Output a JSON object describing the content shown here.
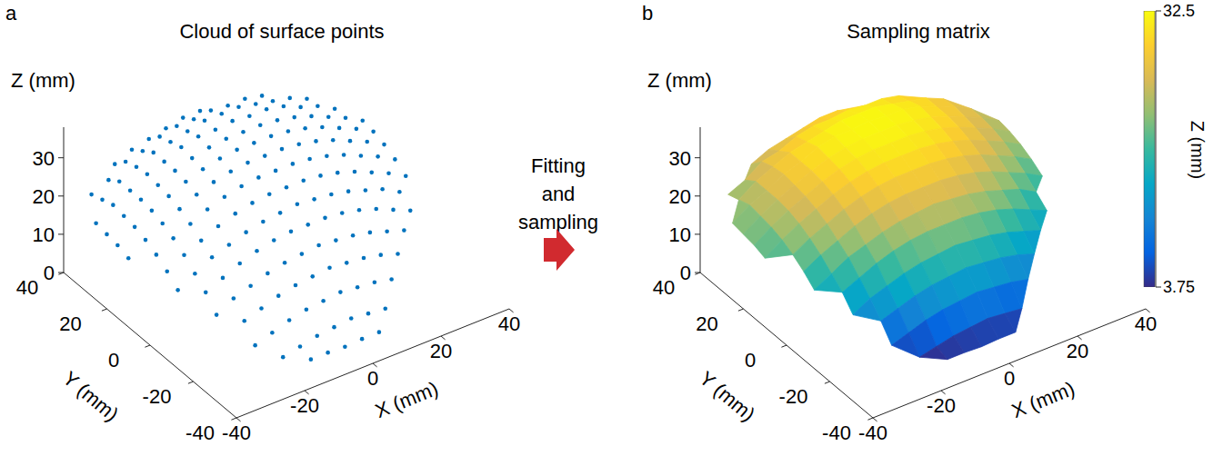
{
  "annotation": "Fitting and sampling",
  "chart_data": [
    {
      "label": "a",
      "type": "scatter3d",
      "title": "Cloud of surface points",
      "xlabel": "X (mm)",
      "ylabel": "Y (mm)",
      "zlabel": "Z (mm)",
      "xlim": [
        -40,
        40
      ],
      "ylim": [
        -40,
        40
      ],
      "zlim": [
        0,
        38
      ],
      "xticks": [
        -40,
        -20,
        0,
        20,
        40
      ],
      "yticks": [
        -40,
        -20,
        0,
        20,
        40
      ],
      "zticks": [
        0,
        10,
        20,
        30
      ],
      "color": "#0072bd",
      "x": [
        -40,
        -35,
        -30,
        -25,
        -20,
        -15,
        -10,
        -5,
        0,
        5,
        10,
        15,
        20,
        25,
        30,
        35,
        40
      ],
      "y": [
        -35,
        -30,
        -25,
        -20,
        -15,
        -10,
        -5,
        0,
        5,
        10,
        15,
        20,
        25,
        30,
        35,
        40
      ],
      "z": [
        [
          null,
          null,
          null,
          null,
          null,
          4,
          4,
          3.75,
          4,
          4,
          null,
          null,
          null,
          null,
          null,
          null,
          null
        ],
        [
          null,
          null,
          null,
          null,
          4,
          5,
          6,
          6.5,
          7,
          6.5,
          6,
          null,
          null,
          null,
          null,
          null,
          null
        ],
        [
          null,
          null,
          null,
          6.5,
          8,
          9.5,
          10.5,
          11,
          11.5,
          11,
          10.5,
          9.5,
          null,
          null,
          null,
          null,
          null
        ],
        [
          null,
          null,
          null,
          10.5,
          12,
          13.5,
          14.5,
          15,
          15.5,
          15,
          14.5,
          13.5,
          12,
          null,
          null,
          null,
          null
        ],
        [
          null,
          null,
          11.5,
          14,
          15.5,
          17,
          18,
          18.5,
          19,
          18.5,
          18,
          17,
          15.5,
          14,
          null,
          null,
          null
        ],
        [
          null,
          null,
          15,
          17,
          19,
          20.5,
          21.5,
          22,
          22,
          22,
          21.5,
          20.5,
          19,
          17,
          15,
          null,
          null
        ],
        [
          null,
          15,
          17.5,
          20,
          21.5,
          23,
          24,
          24.5,
          25,
          24.5,
          24,
          23,
          21.5,
          20,
          17.5,
          null,
          null
        ],
        [
          null,
          17.5,
          20,
          22,
          24,
          25.5,
          26.5,
          27,
          27,
          27,
          26.5,
          25.5,
          24,
          22,
          20,
          17.5,
          null
        ],
        [
          null,
          19.5,
          22,
          24,
          26,
          27.5,
          28.5,
          29,
          29,
          29,
          28.5,
          27.5,
          26,
          24,
          22,
          19.5,
          null
        ],
        [
          18,
          21,
          23.5,
          25.5,
          27.5,
          29,
          30,
          30.5,
          30.5,
          30.5,
          30,
          29,
          27.5,
          25.5,
          23.5,
          21,
          null
        ],
        [
          19,
          22,
          24.5,
          26.5,
          28.5,
          30,
          31,
          31.5,
          31.5,
          31.5,
          31,
          30,
          28.5,
          26.5,
          24.5,
          22,
          null
        ],
        [
          19.5,
          22.5,
          25,
          27,
          29,
          30.5,
          31.5,
          32,
          32,
          32,
          31.5,
          30.5,
          29,
          27,
          25,
          22.5,
          null
        ],
        [
          20,
          23,
          25,
          27.5,
          29,
          31,
          32,
          32,
          32.5,
          32,
          32,
          31,
          29,
          27.5,
          25,
          null,
          null
        ],
        [
          null,
          22,
          25,
          27,
          29,
          30,
          31,
          32,
          32,
          32,
          31,
          30,
          29,
          27,
          null,
          null,
          null
        ],
        [
          null,
          21,
          23,
          26,
          27,
          29,
          30,
          30,
          30.5,
          30,
          30,
          29,
          null,
          null,
          null,
          null,
          null
        ],
        [
          null,
          null,
          null,
          23,
          25,
          26,
          27,
          28,
          28,
          null,
          null,
          null,
          null,
          null,
          null,
          null,
          null
        ]
      ]
    },
    {
      "label": "b",
      "type": "surface",
      "title": "Sampling matrix",
      "xlabel": "X (mm)",
      "ylabel": "Y (mm)",
      "zlabel": "Z (mm)",
      "xlim": [
        -40,
        40
      ],
      "ylim": [
        -40,
        40
      ],
      "zlim": [
        0,
        38
      ],
      "xticks": [
        -40,
        -20,
        0,
        20,
        40
      ],
      "yticks": [
        -40,
        -20,
        0,
        20,
        40
      ],
      "zticks": [
        0,
        10,
        20,
        30
      ],
      "x": [
        -40,
        -35,
        -30,
        -25,
        -20,
        -15,
        -10,
        -5,
        0,
        5,
        10,
        15,
        20,
        25,
        30,
        35,
        40
      ],
      "y": [
        -35,
        -30,
        -25,
        -20,
        -15,
        -10,
        -5,
        0,
        5,
        10,
        15,
        20,
        25,
        30,
        35,
        40
      ],
      "z": [
        [
          null,
          null,
          null,
          null,
          null,
          4,
          4,
          3.75,
          4,
          4,
          null,
          null,
          null,
          null,
          null,
          null,
          null
        ],
        [
          null,
          null,
          null,
          null,
          4,
          5,
          6,
          6.5,
          7,
          6.5,
          6,
          null,
          null,
          null,
          null,
          null,
          null
        ],
        [
          null,
          null,
          null,
          6.5,
          8,
          9.5,
          10.5,
          11,
          11.5,
          11,
          10.5,
          9.5,
          null,
          null,
          null,
          null,
          null
        ],
        [
          null,
          null,
          null,
          10.5,
          12,
          13.5,
          14.5,
          15,
          15.5,
          15,
          14.5,
          13.5,
          12,
          null,
          null,
          null,
          null
        ],
        [
          null,
          null,
          11.5,
          14,
          15.5,
          17,
          18,
          18.5,
          19,
          18.5,
          18,
          17,
          15.5,
          14,
          null,
          null,
          null
        ],
        [
          null,
          null,
          15,
          17,
          19,
          20.5,
          21.5,
          22,
          22,
          22,
          21.5,
          20.5,
          19,
          17,
          15,
          null,
          null
        ],
        [
          null,
          15,
          17.5,
          20,
          21.5,
          23,
          24,
          24.5,
          25,
          24.5,
          24,
          23,
          21.5,
          20,
          17.5,
          null,
          null
        ],
        [
          null,
          17.5,
          20,
          22,
          24,
          25.5,
          26.5,
          27,
          27,
          27,
          26.5,
          25.5,
          24,
          22,
          20,
          17.5,
          null
        ],
        [
          null,
          19.5,
          22,
          24,
          26,
          27.5,
          28.5,
          29,
          29,
          29,
          28.5,
          27.5,
          26,
          24,
          22,
          19.5,
          null
        ],
        [
          18,
          21,
          23.5,
          25.5,
          27.5,
          29,
          30,
          30.5,
          30.5,
          30.5,
          30,
          29,
          27.5,
          25.5,
          23.5,
          21,
          null
        ],
        [
          19,
          22,
          24.5,
          26.5,
          28.5,
          30,
          31,
          31.5,
          31.5,
          31.5,
          31,
          30,
          28.5,
          26.5,
          24.5,
          22,
          null
        ],
        [
          19.5,
          22.5,
          25,
          27,
          29,
          30.5,
          31.5,
          32,
          32,
          32,
          31.5,
          30.5,
          29,
          27,
          25,
          22.5,
          null
        ],
        [
          20,
          23,
          25,
          27.5,
          29,
          31,
          32,
          32,
          32.5,
          32,
          32,
          31,
          29,
          27.5,
          25,
          null,
          null
        ],
        [
          null,
          22,
          25,
          27,
          29,
          30,
          31,
          32,
          32,
          32,
          31,
          30,
          29,
          27,
          null,
          null,
          null
        ],
        [
          null,
          21,
          23,
          26,
          27,
          29,
          30,
          30,
          30.5,
          30,
          30,
          29,
          null,
          null,
          null,
          null,
          null
        ],
        [
          null,
          null,
          null,
          23,
          25,
          26,
          27,
          28,
          28,
          null,
          null,
          null,
          null,
          null,
          null,
          null,
          null
        ]
      ],
      "colorbar": {
        "label": "Z (mm)",
        "range": [
          3.75,
          32.5
        ],
        "ticks": [
          3.75,
          32.5
        ]
      }
    }
  ]
}
